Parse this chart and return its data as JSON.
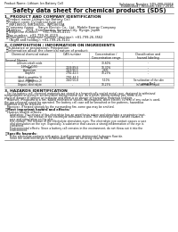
{
  "title": "Safety data sheet for chemical products (SDS)",
  "header_left": "Product Name: Lithium Ion Battery Cell",
  "header_right_line1": "Substance Number: SDS-088-00016",
  "header_right_line2": "Established / Revision: Dec.7.2016",
  "section1_title": "1. PRODUCT AND COMPANY IDENTIFICATION",
  "section1_lines": [
    "・Product name: Lithium Ion Battery Cell",
    "・Product code: Cylindrical-type cell",
    "   INR18650J, INR18650L, INR18650A",
    "・Company name:    Sanyo Electric Co., Ltd., Mobile Energy Company",
    "・Address:    2001, Kamikosaka, Sumoto-City, Hyogo, Japan",
    "・Telephone number:    +81-799-26-4111",
    "・Fax number:  +81-799-26-4129",
    "・Emergency telephone number (daytime): +81-799-26-3562",
    "   (Night and holiday): +81-799-26-3101"
  ],
  "section2_title": "2. COMPOSITION / INFORMATION ON INGREDIENTS",
  "section2_sub": "・Substance or preparation: Preparation",
  "section2_sub2": "・Information about the chemical nature of product:",
  "table_headers": [
    "Chemical chemical nature",
    "CAS number",
    "Concentration /\nConcentration range",
    "Classification and\nhazard labeling"
  ],
  "table_col_header": "Several Names",
  "table_rows": [
    [
      "Lithium cobalt oxide\n(LiMn/CoO/Ni)",
      "-",
      "30-60%",
      "-"
    ],
    [
      "Iron",
      "7439-89-6",
      "10-30%",
      "-"
    ],
    [
      "Aluminium",
      "7429-90-5",
      "2-6%",
      "-"
    ],
    [
      "Graphite\n(Artif.in graphite-1)\n(Artif.in graphite-2)",
      "7782-42-5\n7782-44-3",
      "10-25%",
      "-"
    ],
    [
      "Copper",
      "7440-50-8",
      "5-10%",
      "Sensitization of the skin\ngroup No.2"
    ],
    [
      "Organic electrolyte",
      "-",
      "10-25%",
      "Inflammable liquid"
    ]
  ],
  "section3_title": "3. HAZARDS IDENTIFICATION",
  "section3_para1_lines": [
    "   For the battery cell, chemical materials are stored in a hermetically sealed metal case, designed to withstand",
    "temperatures or pressure-accumulation during normal use. As a result, during normal use, there is no",
    "physical danger of ignition or explosion and there is no danger of hazardous materials leakage.",
    "   However, if exposed to a fire, added mechanical shocks, decomposed, when electric current of any value is used,",
    "the gas released cannot be operated. The battery cell case will be breached or fire patterns, hazardous",
    "materials may be released.",
    "   Moreover, if heated strongly by the surrounding fire, some gas may be emitted."
  ],
  "section3_sub1": "・Most important hazard and effects:",
  "section3_sub1a": "Human health effects:",
  "section3_sub1b_lines": [
    "   Inhalation: The release of the electrolyte has an anesthesia action and stimulates a respiratory tract.",
    "   Skin contact: The release of the electrolyte stimulates a skin. The electrolyte skin contact causes a",
    "   sore and stimulation on the skin.",
    "   Eye contact: The release of the electrolyte stimulates eyes. The electrolyte eye contact causes a sore",
    "   and stimulation on the eye. Especially, a substance that causes a strong inflammation of the eye is",
    "   contained.",
    "   Environmental effects: Since a battery cell remains in the environment, do not throw out it into the",
    "   environment."
  ],
  "section3_sub2": "・Specific hazards:",
  "section3_sub2a_lines": [
    "   If the electrolyte contacts with water, it will generate detrimental hydrogen fluoride.",
    "   Since the used electrolyte is inflammable liquid, do not bring close to fire."
  ],
  "bg_color": "#ffffff",
  "text_color": "#111111",
  "line_color": "#555555",
  "table_line_color": "#999999",
  "fs_header": 2.4,
  "fs_title": 4.8,
  "fs_section": 3.2,
  "fs_body": 2.5,
  "fs_table": 2.3
}
